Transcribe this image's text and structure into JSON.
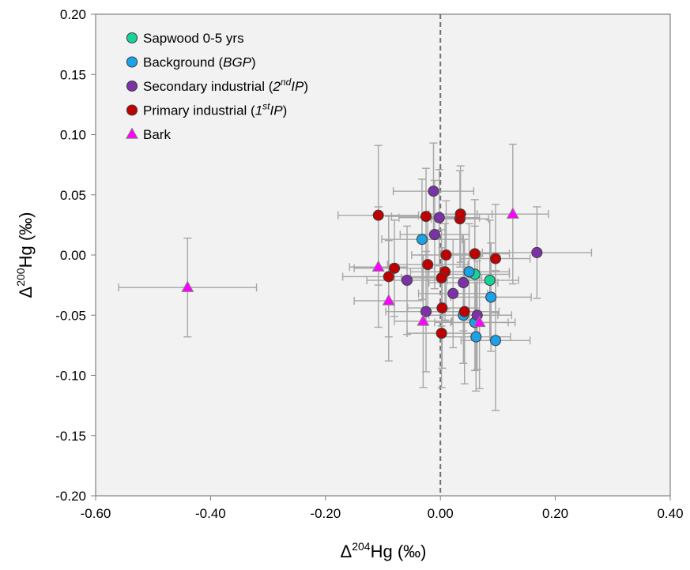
{
  "chart_data": {
    "type": "scatter",
    "xlabel": {
      "prefix": "Δ",
      "sup": "204",
      "main": "Hg (‰)"
    },
    "ylabel": {
      "prefix": "Δ",
      "sup": "200",
      "main": "Hg (‰)"
    },
    "xlim": [
      -0.6,
      0.4
    ],
    "ylim": [
      -0.2,
      0.2
    ],
    "xticks": [
      -0.6,
      -0.4,
      -0.2,
      0.0,
      0.2,
      0.4
    ],
    "yticks": [
      -0.2,
      -0.15,
      -0.1,
      -0.05,
      0.0,
      0.05,
      0.1,
      0.15,
      0.2
    ],
    "xtick_labels": [
      "-0.60",
      "-0.40",
      "-0.20",
      "0.00",
      "0.20",
      "0.40"
    ],
    "ytick_labels": [
      "-0.20",
      "-0.15",
      "-0.10",
      "-0.05",
      "0.00",
      "0.05",
      "0.10",
      "0.15",
      "0.20"
    ],
    "reference_line": {
      "x": 0,
      "style": "dashed"
    },
    "background": "#f2f2f2",
    "grid": false,
    "legend_position": "top-left",
    "colors": {
      "sapwood": "#17d39a",
      "background": "#1aa3e8",
      "secondary": "#7d31a8",
      "primary": "#c00000",
      "bark": "#ff00ff",
      "errorbar": "#a6a6a6"
    },
    "series": [
      {
        "key": "sapwood",
        "marker": "circle",
        "legend": {
          "text": "Sapwood 0-5 yrs",
          "italic": "",
          "sup": "",
          "tail": ""
        },
        "points": [
          {
            "x": 0.086,
            "y": -0.021,
            "xerr": 0.05,
            "yerr": 0.05
          },
          {
            "x": 0.06,
            "y": -0.016,
            "xerr": 0.06,
            "yerr": 0.04
          }
        ]
      },
      {
        "key": "background",
        "marker": "circle",
        "legend": {
          "text": "Background (",
          "italic": "BGP",
          "sup": "",
          "tail": ")"
        },
        "points": [
          {
            "x": -0.032,
            "y": 0.013,
            "xerr": 0.07,
            "yerr": 0.05
          },
          {
            "x": 0.05,
            "y": -0.014,
            "xerr": 0.07,
            "yerr": 0.04
          },
          {
            "x": 0.088,
            "y": -0.035,
            "xerr": 0.07,
            "yerr": 0.045
          },
          {
            "x": 0.04,
            "y": -0.05,
            "xerr": 0.06,
            "yerr": 0.04
          },
          {
            "x": 0.06,
            "y": -0.056,
            "xerr": 0.07,
            "yerr": 0.04
          },
          {
            "x": 0.062,
            "y": -0.068,
            "xerr": 0.06,
            "yerr": 0.045
          },
          {
            "x": 0.096,
            "y": -0.071,
            "xerr": 0.06,
            "yerr": 0.058
          }
        ]
      },
      {
        "key": "secondary",
        "marker": "circle",
        "legend": {
          "text": "Secondary industrial (",
          "italic": "",
          "sup": "nd",
          "supPrefix": "2",
          "italicTail": "IP",
          "tail": ")"
        },
        "points": [
          {
            "x": -0.012,
            "y": 0.053,
            "xerr": 0.07,
            "yerr": 0.04
          },
          {
            "x": -0.002,
            "y": 0.031,
            "xerr": 0.07,
            "yerr": 0.04
          },
          {
            "x": -0.01,
            "y": 0.017,
            "xerr": 0.06,
            "yerr": 0.045
          },
          {
            "x": -0.058,
            "y": -0.021,
            "xerr": 0.07,
            "yerr": 0.045
          },
          {
            "x": 0.022,
            "y": -0.032,
            "xerr": 0.06,
            "yerr": 0.045
          },
          {
            "x": 0.04,
            "y": -0.023,
            "xerr": 0.06,
            "yerr": 0.04
          },
          {
            "x": -0.025,
            "y": -0.047,
            "xerr": 0.07,
            "yerr": 0.05
          },
          {
            "x": 0.064,
            "y": -0.05,
            "xerr": 0.06,
            "yerr": 0.045
          },
          {
            "x": 0.168,
            "y": 0.002,
            "xerr": 0.095,
            "yerr": 0.038
          }
        ]
      },
      {
        "key": "primary",
        "marker": "circle",
        "legend": {
          "text": "Primary industrial (",
          "italic": "",
          "sup": "st",
          "supPrefix": "1",
          "italicTail": "IP",
          "tail": ")"
        },
        "points": [
          {
            "x": -0.108,
            "y": 0.033,
            "xerr": 0.07,
            "yerr": 0.058
          },
          {
            "x": -0.025,
            "y": 0.032,
            "xerr": 0.06,
            "yerr": 0.04
          },
          {
            "x": 0.034,
            "y": 0.03,
            "xerr": 0.05,
            "yerr": 0.04
          },
          {
            "x": 0.035,
            "y": 0.034,
            "xerr": 0.055,
            "yerr": 0.04
          },
          {
            "x": 0.01,
            "y": 0.0,
            "xerr": 0.06,
            "yerr": 0.045
          },
          {
            "x": 0.06,
            "y": 0.001,
            "xerr": 0.06,
            "yerr": 0.045
          },
          {
            "x": 0.096,
            "y": -0.003,
            "xerr": 0.06,
            "yerr": 0.045
          },
          {
            "x": -0.08,
            "y": -0.011,
            "xerr": 0.07,
            "yerr": 0.04
          },
          {
            "x": -0.09,
            "y": -0.018,
            "xerr": 0.08,
            "yerr": 0.05
          },
          {
            "x": -0.022,
            "y": -0.008,
            "xerr": 0.07,
            "yerr": 0.04
          },
          {
            "x": 0.008,
            "y": -0.014,
            "xerr": 0.06,
            "yerr": 0.04
          },
          {
            "x": 0.002,
            "y": -0.019,
            "xerr": 0.07,
            "yerr": 0.04
          },
          {
            "x": 0.003,
            "y": -0.044,
            "xerr": 0.06,
            "yerr": 0.05
          },
          {
            "x": 0.042,
            "y": -0.047,
            "xerr": 0.06,
            "yerr": 0.06
          },
          {
            "x": 0.002,
            "y": -0.065,
            "xerr": 0.06,
            "yerr": 0.045
          }
        ]
      },
      {
        "key": "bark",
        "marker": "triangle",
        "legend": {
          "text": "Bark",
          "italic": "",
          "sup": "",
          "tail": ""
        },
        "points": [
          {
            "x": -0.44,
            "y": -0.027,
            "xerr": 0.12,
            "yerr": 0.041
          },
          {
            "x": -0.108,
            "y": -0.01,
            "xerr": 0.05,
            "yerr": 0.05
          },
          {
            "x": -0.09,
            "y": -0.038,
            "xerr": 0.06,
            "yerr": 0.05
          },
          {
            "x": -0.03,
            "y": -0.055,
            "xerr": 0.05,
            "yerr": 0.055
          },
          {
            "x": 0.068,
            "y": -0.056,
            "xerr": 0.05,
            "yerr": 0.055
          },
          {
            "x": 0.126,
            "y": 0.034,
            "xerr": 0.062,
            "yerr": 0.058
          }
        ]
      }
    ]
  }
}
